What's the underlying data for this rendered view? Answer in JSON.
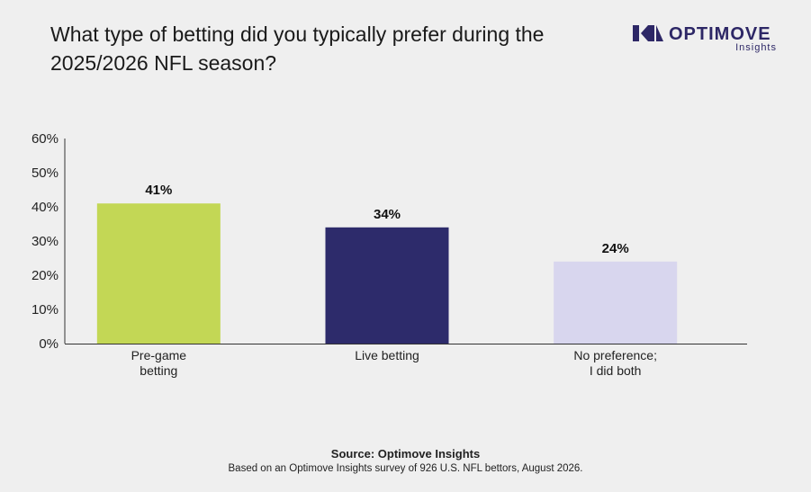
{
  "title": "What type of betting did you typically prefer during the 2025/2026 NFL season?",
  "brand": {
    "name": "OPTIMOVE",
    "subtitle": "Insights",
    "color": "#2d2766"
  },
  "chart_data": {
    "type": "bar",
    "categories": [
      [
        "Pre-game",
        "betting"
      ],
      [
        "Live betting"
      ],
      [
        "No preference;",
        "I did both"
      ]
    ],
    "values": [
      41,
      34,
      24
    ],
    "value_labels": [
      "41%",
      "34%",
      "24%"
    ],
    "colors": [
      "#c3d755",
      "#2d2b6b",
      "#d8d6ee"
    ],
    "ylim": [
      0,
      60
    ],
    "yticks": [
      "0%",
      "10%",
      "20%",
      "30%",
      "40%",
      "50%",
      "60%"
    ],
    "grid": false
  },
  "footer": {
    "source": "Source: Optimove Insights",
    "note": "Based on an Optimove Insights survey of 926 U.S. NFL bettors, August 2026."
  }
}
